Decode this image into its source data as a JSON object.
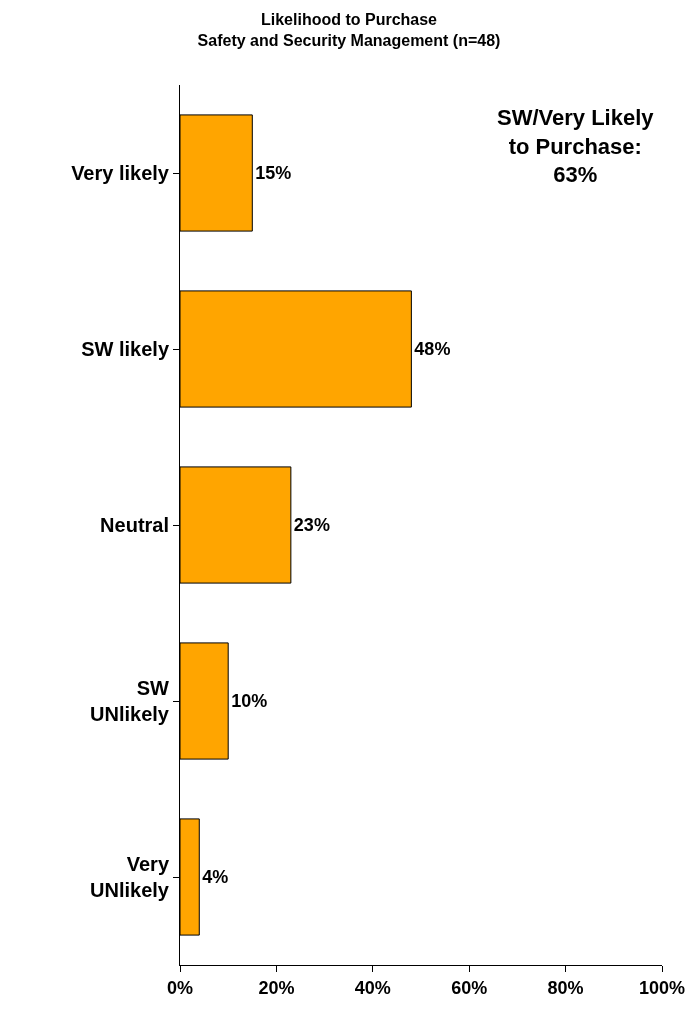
{
  "chart_data": {
    "type": "bar",
    "orientation": "horizontal",
    "title": "Likelihood to Purchase\nSafety and Security Management (n=48)",
    "categories": [
      "Very likely",
      "SW likely",
      "Neutral",
      "SW\nUNlikely",
      "Very\nUNlikely"
    ],
    "values": [
      15,
      48,
      23,
      10,
      4
    ],
    "value_labels": [
      "15%",
      "48%",
      "23%",
      "10%",
      "4%"
    ],
    "color": "#ffa500",
    "xlim": [
      0,
      100
    ],
    "xticks": [
      {
        "value": 0,
        "label": "0%"
      },
      {
        "value": 20,
        "label": "20%"
      },
      {
        "value": 40,
        "label": "40%"
      },
      {
        "value": 60,
        "label": "60%"
      },
      {
        "value": 80,
        "label": "80%"
      },
      {
        "value": 100,
        "label": "100%"
      }
    ],
    "annotations": [
      "SW/Very Likely\nto Purchase:\n63%"
    ]
  }
}
